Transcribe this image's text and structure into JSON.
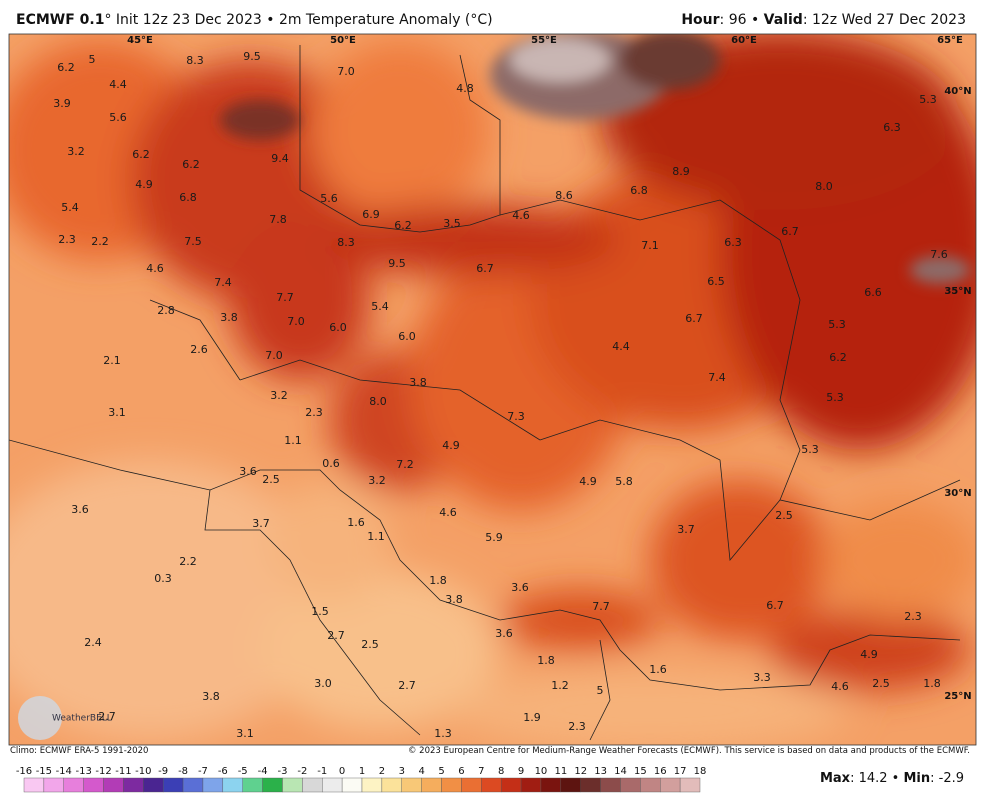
{
  "header": {
    "model": "ECMWF 0.1",
    "info": "° Init 12z 23 Dec 2023 • 2m Temperature Anomaly (°C)",
    "hour_label": "Hour",
    "hour": ": 96 • ",
    "valid_label": "Valid",
    "valid": ": 12z Wed 27 Dec 2023"
  },
  "map": {
    "lon_labels": [
      "45°E",
      "50°E",
      "55°E",
      "60°E",
      "65°E"
    ],
    "lat_labels": [
      "40°N",
      "35°N",
      "30°N",
      "25°N"
    ],
    "values": [
      "6.2",
      "5",
      "8.3",
      "9.5",
      "7.0",
      "4.8",
      "5.3",
      "3.9",
      "4.4",
      "5.6",
      "6.3",
      "3.2",
      "6.2",
      "6.2",
      "9.4",
      "8.9",
      "4.9",
      "6.8",
      "5.6",
      "8.6",
      "6.8",
      "8.0",
      "5.4",
      "7.8",
      "6.9",
      "6.2",
      "3.5",
      "4.6",
      "6.7",
      "2.3",
      "2.2",
      "7.5",
      "8.3",
      "7.1",
      "6.3",
      "7.6",
      "4.6",
      "9.5",
      "6.7",
      "7.4",
      "6.5",
      "6.6",
      "7.7",
      "5.4",
      "3.8",
      "7.0",
      "6.0",
      "6.7",
      "5.3",
      "2.8",
      "2.6",
      "6.0",
      "4.4",
      "7.0",
      "6.2",
      "2.1",
      "7.4",
      "3.8",
      "3.2",
      "5.3",
      "8.0",
      "2.3",
      "3.1",
      "7.3",
      "1.1",
      "4.9",
      "5.3",
      "0.6",
      "7.2",
      "3.6",
      "2.5",
      "3.2",
      "4.9",
      "5.8",
      "3.6",
      "4.6",
      "1.6",
      "3.7",
      "2.5",
      "3.7",
      "5.9",
      "1.1",
      "2.2",
      "0.3",
      "1.8",
      "3.6",
      "3.8",
      "7.7",
      "6.7",
      "2.3",
      "1.5",
      "2.7",
      "2.5",
      "3.6",
      "2.4",
      "1.8",
      "4.9",
      "1.6",
      "3.3",
      "3.0",
      "2.7",
      "1.2",
      "5",
      "2.5",
      "1.8",
      "4.6",
      "3.8",
      "2.7",
      "1.9",
      "2.3",
      "3.1",
      "1.3"
    ]
  },
  "logo": "WeatherBELL",
  "footer": {
    "climo": "Climo: ECMWF ERA-5 1991-2020",
    "copyright": "© 2023 European Centre for Medium-Range Weather Forecasts (ECMWF). This service is based on data and products of the ECMWF."
  },
  "colorbar": {
    "ticks": [
      -16,
      -15,
      -14,
      -13,
      -12,
      -11,
      -10,
      -9,
      -8,
      -7,
      -6,
      -5,
      -4,
      -3,
      -2,
      -1,
      0,
      1,
      2,
      3,
      4,
      5,
      6,
      7,
      8,
      9,
      10,
      11,
      12,
      13,
      14,
      15,
      16,
      17,
      18
    ],
    "colors": [
      "#f9c8f2",
      "#f2a6ea",
      "#e77fdc",
      "#d459cc",
      "#b23cb6",
      "#7d2aa0",
      "#4a2591",
      "#3b3fb5",
      "#5a6fd6",
      "#7ea4ea",
      "#8cd3ef",
      "#5fd18f",
      "#2bb14a",
      "#b9e6b3",
      "#d8d8d8",
      "#ececec",
      "#fbfbf4",
      "#fdf3c4",
      "#fbe29a",
      "#f8c877",
      "#f5ad5d",
      "#f18f45",
      "#ea6f33",
      "#dc4a22",
      "#c42f17",
      "#a01d12",
      "#7a140f",
      "#5d1410",
      "#6b2e2b",
      "#8c4c4b",
      "#a96a6a",
      "#c08584",
      "#d29f9d",
      "#e2bcba",
      "#edd3d1"
    ]
  },
  "stats": {
    "max_label": "Max",
    "max": ": 14.2 • ",
    "min_label": "Min",
    "min": ": -2.9"
  }
}
